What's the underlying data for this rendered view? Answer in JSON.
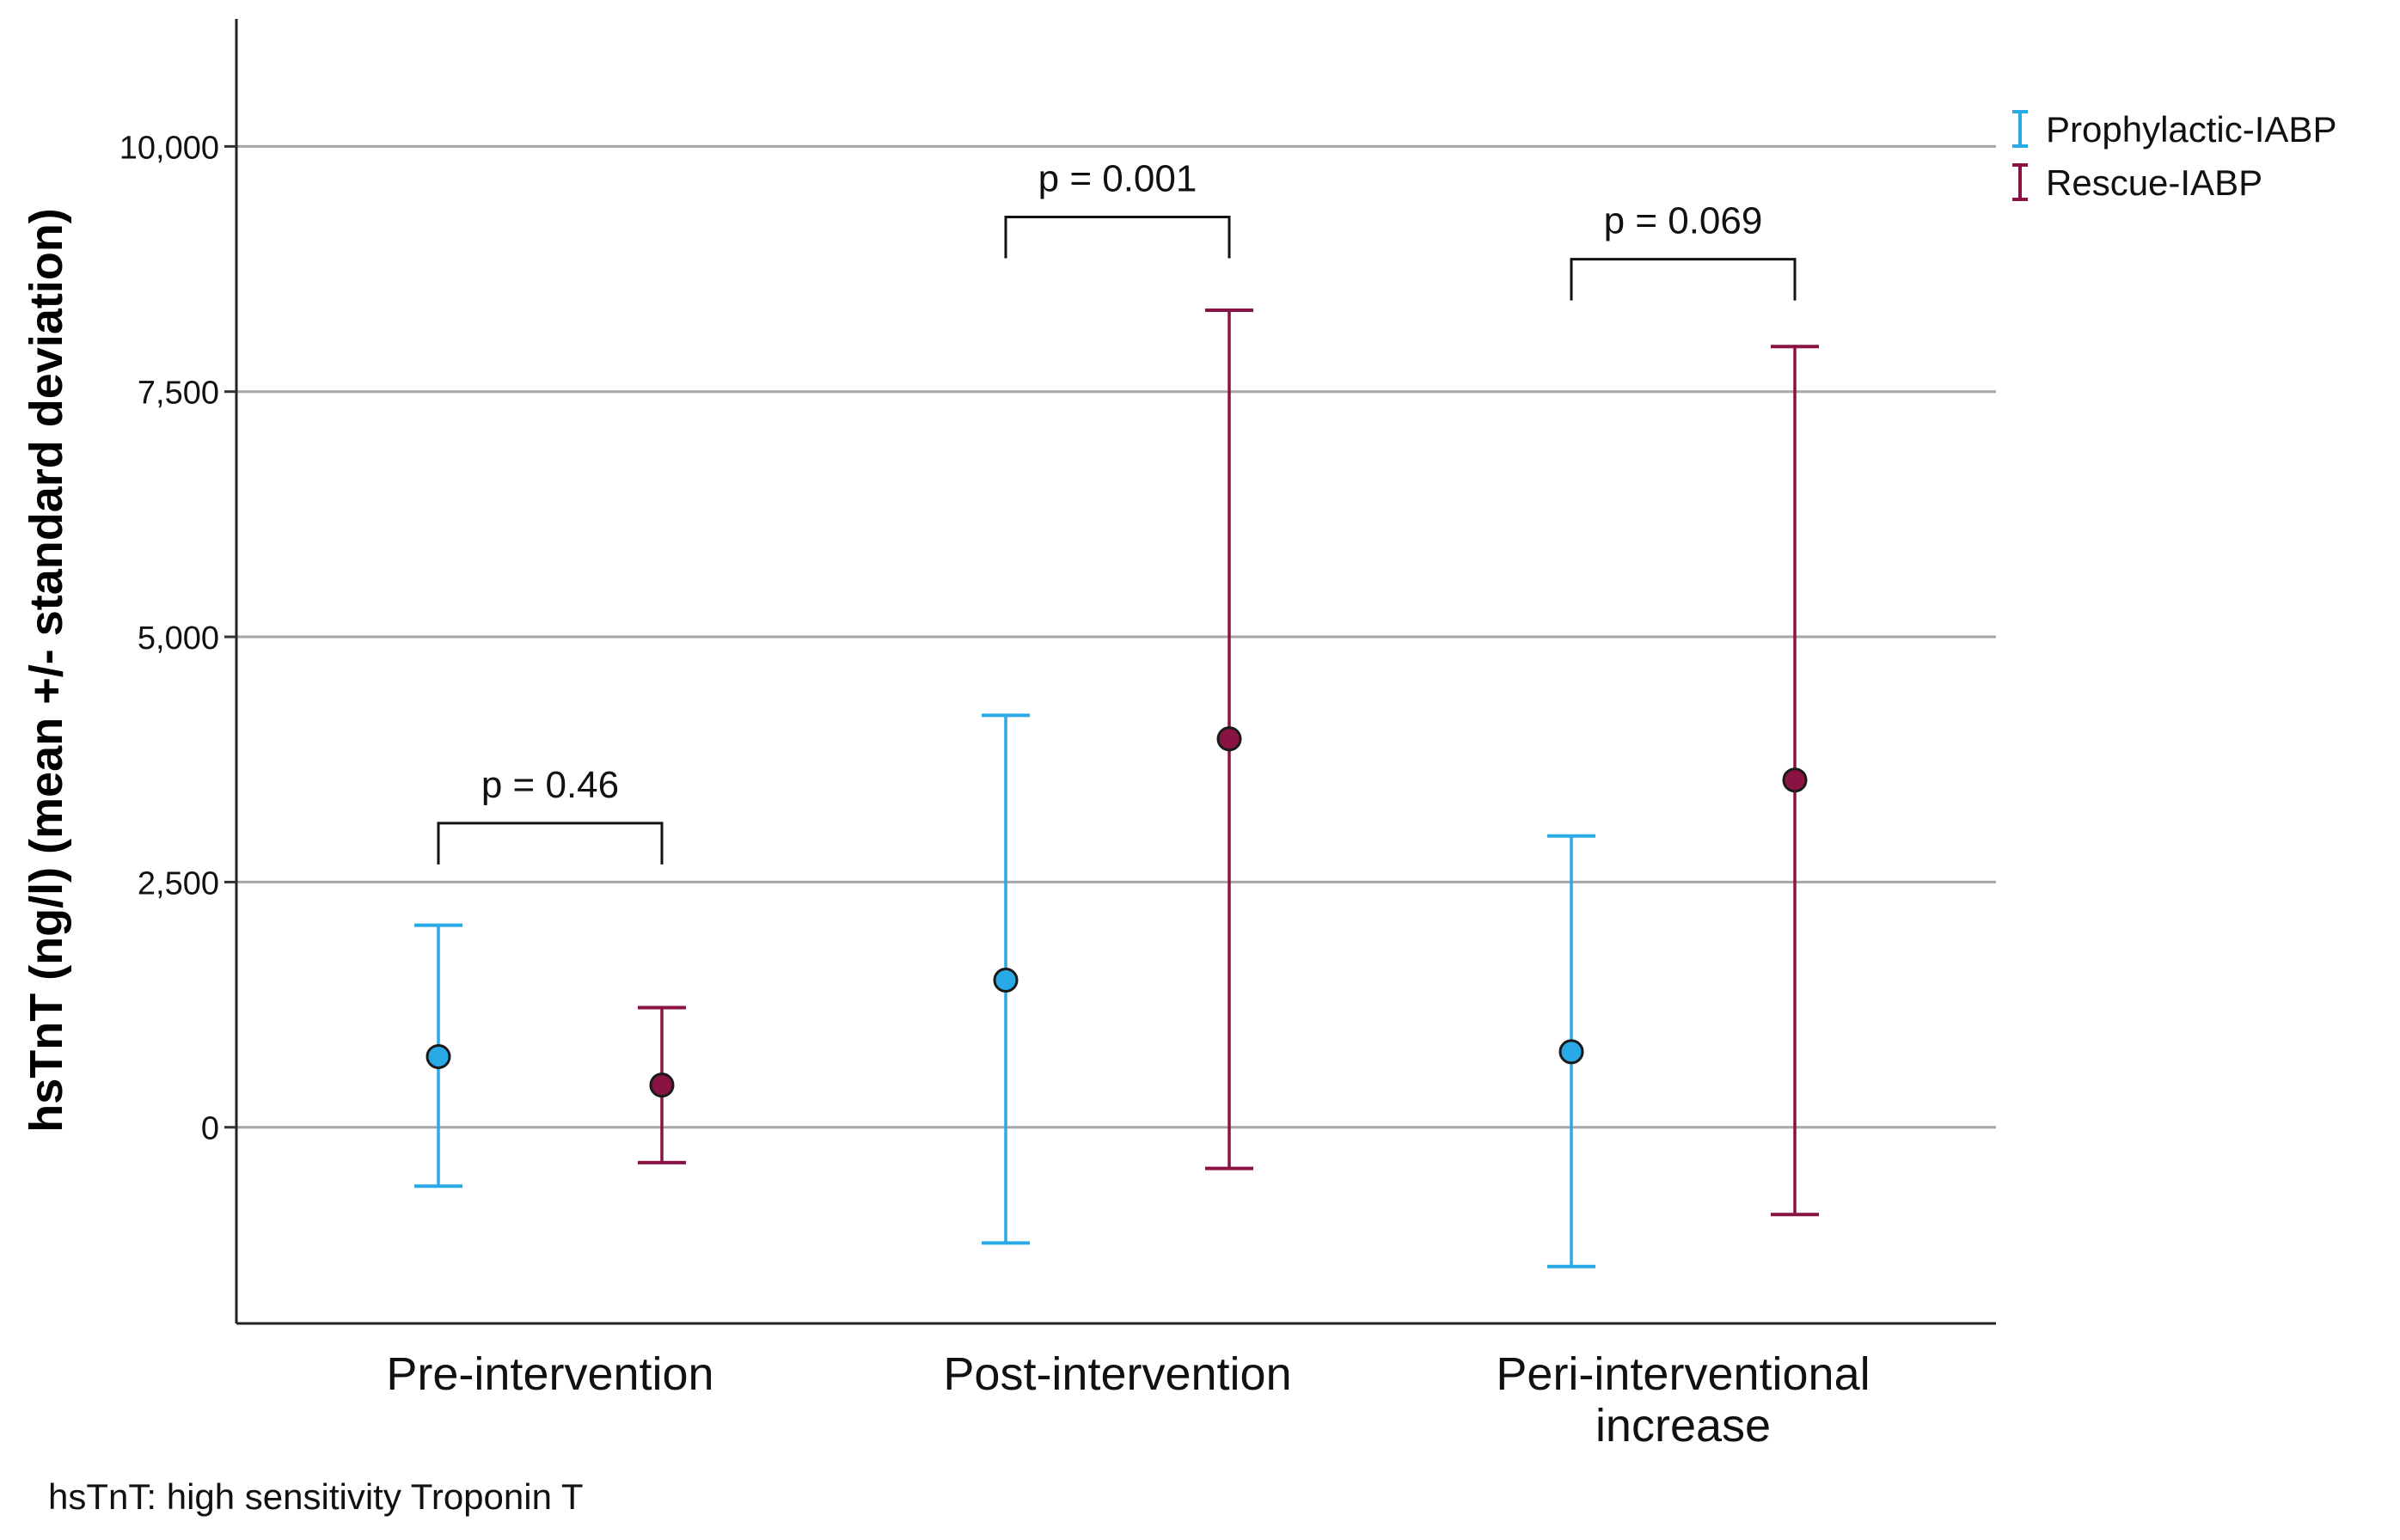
{
  "chart_data": {
    "type": "errorbar",
    "title": "",
    "xlabel": "",
    "ylabel": "hsTnT (ng/l) (mean +/- standard deviation)",
    "ylim": [
      -2000,
      11300
    ],
    "yticks": [
      0,
      2500,
      5000,
      7500,
      10000
    ],
    "ytick_labels": [
      "0",
      "2,500",
      "5,000",
      "7,500",
      "10,000"
    ],
    "grid": "horizontal",
    "legend_position": "top-right",
    "categories": [
      {
        "label_lines": [
          "Pre-intervention"
        ]
      },
      {
        "label_lines": [
          "Post-intervention"
        ]
      },
      {
        "label_lines": [
          "Peri-interventional",
          "increase"
        ]
      }
    ],
    "series": [
      {
        "name": "Prophylactic-IABP",
        "color": "#29a9e6",
        "mean": [
          720,
          1500,
          770
        ],
        "sd_low": [
          -600,
          -1180,
          -1420
        ],
        "sd_high": [
          2060,
          4200,
          2970
        ]
      },
      {
        "name": "Rescue-IABP",
        "color": "#8b1344",
        "mean": [
          430,
          3960,
          3540
        ],
        "sd_low": [
          -360,
          -420,
          -890
        ],
        "sd_high": [
          1220,
          8330,
          7960
        ]
      }
    ],
    "annotations": [
      {
        "category": 0,
        "text": "p = 0.46",
        "bracket_y": 3100
      },
      {
        "category": 1,
        "text": "p = 0.001",
        "bracket_y": 9280
      },
      {
        "category": 2,
        "text": "p = 0.069",
        "bracket_y": 8850
      }
    ]
  },
  "footnote": "hsTnT: high sensitivity Troponin T"
}
